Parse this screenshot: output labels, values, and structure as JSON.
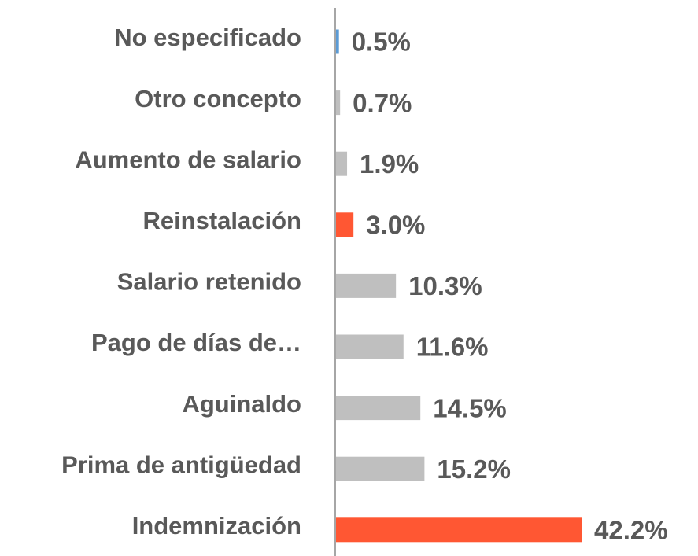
{
  "chart_data": {
    "type": "barh",
    "categories": [
      "No especificado",
      "Otro concepto",
      "Aumento de salario",
      "Reinstalación",
      "Salario retenido",
      "Pago de días de…",
      "Aguinaldo",
      "Prima de antigüedad",
      "Indemnización"
    ],
    "values": [
      0.5,
      0.7,
      1.9,
      3.0,
      10.3,
      11.6,
      14.5,
      15.2,
      42.2
    ],
    "value_labels": [
      "0.5%",
      "0.7%",
      "1.9%",
      "3.0%",
      "10.3%",
      "11.6%",
      "14.5%",
      "15.2%",
      "42.2%"
    ],
    "colors": [
      "#5b9bd5",
      "#bfbfbf",
      "#bfbfbf",
      "#ff5733",
      "#bfbfbf",
      "#bfbfbf",
      "#bfbfbf",
      "#bfbfbf",
      "#ff5733"
    ]
  }
}
